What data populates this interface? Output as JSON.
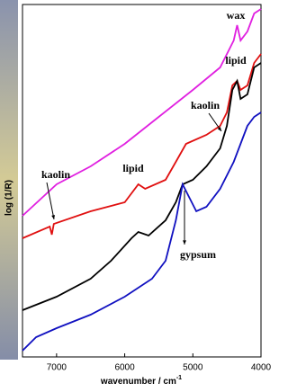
{
  "chart_data": {
    "type": "line",
    "xlabel": "wavenumber / cm",
    "xlabel_sup": "-1",
    "ylabel": "log (1/R)",
    "xlim": [
      7500,
      4000
    ],
    "ylim": [
      0,
      392
    ],
    "xticks": [
      7000,
      6000,
      5000,
      4000
    ],
    "annotations": [
      "wax",
      "lipid",
      "kaolin",
      "lipid",
      "kaolin",
      "gypsum"
    ],
    "series": [
      {
        "color": "#e020e0",
        "x": [
          7500,
          7000,
          6500,
          6000,
          5500,
          5000,
          4600,
          4400,
          4350,
          4300,
          4200,
          4100,
          4000
        ],
        "values": [
          157,
          192,
          212,
          237,
          267,
          297,
          322,
          352,
          369,
          352,
          362,
          382,
          387
        ]
      },
      {
        "color": "#e01010",
        "x": [
          7500,
          7100,
          7070,
          7040,
          6500,
          6000,
          5800,
          5700,
          5400,
          5250,
          5100,
          4800,
          4600,
          4500,
          4420,
          4350,
          4300,
          4200,
          4100,
          4000
        ],
        "values": [
          132,
          145,
          136,
          148,
          162,
          172,
          192,
          187,
          197,
          217,
          237,
          247,
          257,
          272,
          302,
          307,
          297,
          302,
          327,
          337
        ]
      },
      {
        "color": "#000000",
        "x": [
          7500,
          7000,
          6500,
          6200,
          5900,
          5800,
          5650,
          5400,
          5250,
          5150,
          5000,
          4800,
          4600,
          4500,
          4420,
          4350,
          4300,
          4200,
          4100,
          4000
        ],
        "values": [
          52,
          67,
          87,
          107,
          132,
          139,
          135,
          152,
          172,
          192,
          197,
          212,
          232,
          257,
          297,
          307,
          287,
          292,
          322,
          327
        ]
      },
      {
        "color": "#1010c0",
        "x": [
          7500,
          7300,
          7000,
          6500,
          6000,
          5600,
          5400,
          5250,
          5150,
          5050,
          4950,
          4800,
          4600,
          4400,
          4300,
          4200,
          4100,
          4000
        ],
        "values": [
          7,
          22,
          32,
          47,
          67,
          87,
          107,
          152,
          192,
          177,
          162,
          167,
          187,
          217,
          237,
          257,
          267,
          272
        ]
      }
    ]
  }
}
